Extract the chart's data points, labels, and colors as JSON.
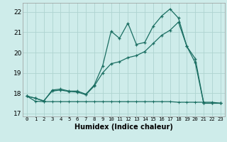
{
  "title": "",
  "xlabel": "Humidex (Indice chaleur)",
  "xlim": [
    -0.5,
    23.5
  ],
  "ylim": [
    16.85,
    22.45
  ],
  "yticks": [
    17,
    18,
    19,
    20,
    21,
    22
  ],
  "xticks": [
    0,
    1,
    2,
    3,
    4,
    5,
    6,
    7,
    8,
    9,
    10,
    11,
    12,
    13,
    14,
    15,
    16,
    17,
    18,
    19,
    20,
    21,
    22,
    23
  ],
  "bg_color": "#ceecea",
  "grid_color": "#aed4d0",
  "line_color": "#1a6e62",
  "line1_x": [
    0,
    1,
    2,
    3,
    4,
    5,
    6,
    7,
    8,
    9,
    10,
    11,
    12,
    13,
    14,
    15,
    16,
    17,
    18,
    19,
    20,
    21,
    22,
    23
  ],
  "line1_y": [
    17.85,
    17.75,
    17.6,
    18.15,
    18.2,
    18.1,
    18.1,
    17.95,
    18.4,
    19.35,
    21.05,
    20.7,
    21.45,
    20.4,
    20.5,
    21.3,
    21.8,
    22.15,
    21.7,
    20.3,
    19.7,
    17.5,
    17.5,
    17.5
  ],
  "line2_x": [
    0,
    1,
    2,
    3,
    4,
    5,
    6,
    7,
    8,
    9,
    10,
    11,
    12,
    13,
    14,
    15,
    16,
    17,
    18,
    19,
    20,
    21,
    22,
    23
  ],
  "line2_y": [
    17.85,
    17.75,
    17.62,
    18.1,
    18.15,
    18.08,
    18.05,
    17.92,
    18.35,
    19.0,
    19.45,
    19.55,
    19.75,
    19.85,
    20.05,
    20.45,
    20.85,
    21.1,
    21.5,
    20.3,
    19.5,
    17.5,
    17.5,
    17.5
  ],
  "line3_x": [
    0,
    1,
    2,
    3,
    4,
    5,
    6,
    7,
    8,
    9,
    10,
    11,
    12,
    13,
    14,
    15,
    16,
    17,
    18,
    19,
    20,
    21,
    22,
    23
  ],
  "line3_y": [
    17.85,
    17.6,
    17.58,
    17.58,
    17.58,
    17.58,
    17.58,
    17.58,
    17.58,
    17.58,
    17.58,
    17.58,
    17.58,
    17.58,
    17.58,
    17.58,
    17.58,
    17.58,
    17.55,
    17.55,
    17.55,
    17.55,
    17.55,
    17.5
  ]
}
